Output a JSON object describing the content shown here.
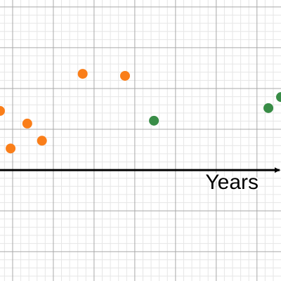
{
  "chart_data": {
    "type": "scatter",
    "x_label": "Years",
    "series": [
      {
        "color": "#fa7e19",
        "x": [
          -0.31,
          -0.05,
          0.36,
          0.72,
          1.72,
          2.76
        ],
        "values": [
          1.45,
          0.53,
          1.14,
          0.72,
          2.36,
          2.31
        ]
      },
      {
        "color": "#388c46",
        "x": [
          3.47,
          6.28,
          6.59
        ],
        "values": [
          1.21,
          1.52,
          1.79
        ]
      }
    ],
    "xlim": [
      -0.31,
      6.59
    ],
    "ylim": [
      -2.72,
      4.17
    ],
    "xticks": [
      0,
      1,
      2,
      3,
      4,
      5,
      6
    ],
    "yticks": [
      -2,
      -1,
      0,
      1,
      2,
      3,
      4
    ],
    "grid": true,
    "minor_divisions": 5
  }
}
